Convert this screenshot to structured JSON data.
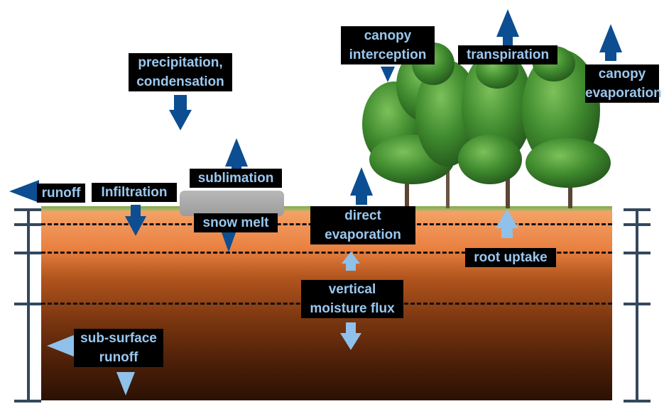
{
  "labels": {
    "precipitation": [
      "precipitation,",
      "condensation"
    ],
    "canopy_interception": [
      "canopy",
      "interception"
    ],
    "transpiration": "transpiration",
    "canopy_evaporation": [
      "canopy",
      "evaporation"
    ],
    "sublimation": "sublimation",
    "runoff": "runoff",
    "infiltration": "Infiltration",
    "snow_melt": "snow melt",
    "direct_evaporation": [
      "direct",
      "evaporation"
    ],
    "root_uptake": "root uptake",
    "vertical_moisture_flux": [
      "vertical",
      "moisture flux"
    ],
    "subsurface_runoff": [
      "sub-surface",
      "runoff"
    ]
  },
  "colors": {
    "label_bg": "#000000",
    "label_text": "#9ac7ef",
    "arrow_dark": "#0c4e91",
    "arrow_light": "#8fc1ea",
    "bracket": "#34475c",
    "tree_foliage": "#3f8a2e",
    "soil_top": "#f5a868",
    "soil_bottom": "#2b1104"
  },
  "icons": [
    "tree-icon",
    "snow-pack-icon",
    "arrow-icon"
  ]
}
